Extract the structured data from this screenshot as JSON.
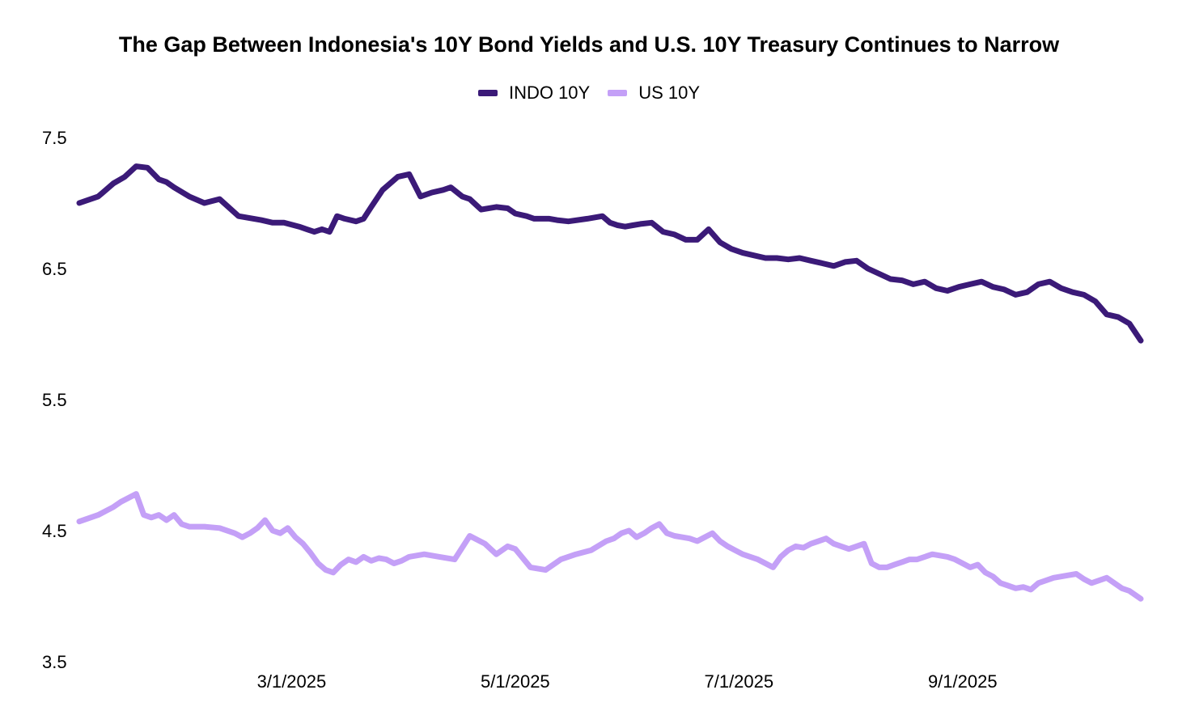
{
  "chart_data": {
    "type": "line",
    "title": "The Gap Between Indonesia's 10Y Bond Yields and U.S. 10Y Treasury Continues to Narrow",
    "xlabel": "",
    "ylabel": "",
    "ylim": [
      3.5,
      7.5
    ],
    "xlim": [
      0,
      280
    ],
    "grid": false,
    "legend_position": "top-center",
    "y_ticks": [
      {
        "value": 3.5,
        "label": "3.5"
      },
      {
        "value": 4.5,
        "label": "4.5"
      },
      {
        "value": 5.5,
        "label": "5.5"
      },
      {
        "value": 6.5,
        "label": "6.5"
      },
      {
        "value": 7.5,
        "label": "7.5"
      }
    ],
    "x_ticks": [
      {
        "value": 56,
        "label": "3/1/2025"
      },
      {
        "value": 115,
        "label": "5/1/2025"
      },
      {
        "value": 174,
        "label": "7/1/2025"
      },
      {
        "value": 233,
        "label": "9/1/2025"
      }
    ],
    "series": [
      {
        "name": "INDO 10Y",
        "color": "#3b1a78",
        "x": [
          0,
          5,
          9,
          12,
          15,
          18,
          21,
          23,
          25,
          29,
          33,
          37,
          42,
          48,
          51,
          54,
          58,
          60,
          62,
          64,
          66,
          68,
          70,
          73,
          75,
          77,
          80,
          84,
          87,
          90,
          93,
          96,
          98,
          101,
          103,
          106,
          110,
          113,
          115,
          118,
          120,
          124,
          126,
          129,
          134,
          138,
          140,
          142,
          144,
          146,
          148,
          151,
          154,
          157,
          160,
          163,
          166,
          169,
          172,
          175,
          178,
          181,
          184,
          187,
          190,
          193,
          196,
          199,
          202,
          205,
          208,
          211,
          214,
          217,
          220,
          223,
          226,
          229,
          232,
          235,
          238,
          241,
          244,
          247,
          250,
          253,
          256,
          259,
          262,
          265,
          268,
          271,
          274,
          277,
          280
        ],
        "values": [
          7.0,
          7.05,
          7.15,
          7.2,
          7.28,
          7.27,
          7.18,
          7.16,
          7.12,
          7.05,
          7.0,
          7.03,
          6.9,
          6.87,
          6.85,
          6.85,
          6.82,
          6.8,
          6.78,
          6.8,
          6.78,
          6.9,
          6.88,
          6.86,
          6.88,
          6.97,
          7.1,
          7.2,
          7.22,
          7.05,
          7.08,
          7.1,
          7.12,
          7.05,
          7.03,
          6.95,
          6.97,
          6.96,
          6.92,
          6.9,
          6.88,
          6.88,
          6.87,
          6.86,
          6.88,
          6.9,
          6.85,
          6.83,
          6.82,
          6.83,
          6.84,
          6.85,
          6.78,
          6.76,
          6.72,
          6.72,
          6.8,
          6.7,
          6.65,
          6.62,
          6.6,
          6.58,
          6.58,
          6.57,
          6.58,
          6.56,
          6.54,
          6.52,
          6.55,
          6.56,
          6.5,
          6.46,
          6.42,
          6.41,
          6.38,
          6.4,
          6.35,
          6.33,
          6.36,
          6.38,
          6.4,
          6.36,
          6.34,
          6.3,
          6.32,
          6.38,
          6.4,
          6.35,
          6.32,
          6.3,
          6.25,
          6.15,
          6.13,
          6.08,
          5.95
        ]
      },
      {
        "name": "US 10Y",
        "color": "#c4a0f7",
        "x": [
          0,
          3,
          5,
          7,
          9,
          11,
          13,
          15,
          17,
          19,
          21,
          23,
          25,
          27,
          29,
          33,
          37,
          41,
          43,
          45,
          47,
          49,
          51,
          53,
          55,
          57,
          59,
          61,
          63,
          65,
          67,
          69,
          71,
          73,
          75,
          77,
          79,
          81,
          83,
          85,
          87,
          91,
          95,
          99,
          103,
          107,
          110,
          113,
          115,
          119,
          123,
          127,
          131,
          135,
          139,
          141,
          143,
          145,
          147,
          149,
          151,
          153,
          155,
          157,
          159,
          161,
          163,
          165,
          167,
          169,
          171,
          173,
          175,
          177,
          179,
          181,
          183,
          185,
          187,
          189,
          191,
          193,
          195,
          197,
          199,
          201,
          203,
          205,
          207,
          209,
          211,
          213,
          215,
          217,
          219,
          221,
          223,
          225,
          227,
          229,
          231,
          233,
          235,
          237,
          239,
          241,
          243,
          245,
          247,
          249,
          251,
          253,
          255,
          257,
          259,
          261,
          263,
          265,
          267,
          269,
          271,
          273,
          275,
          277,
          280
        ],
        "values": [
          4.57,
          4.6,
          4.62,
          4.65,
          4.68,
          4.72,
          4.75,
          4.78,
          4.62,
          4.6,
          4.62,
          4.58,
          4.62,
          4.55,
          4.53,
          4.53,
          4.52,
          4.48,
          4.45,
          4.48,
          4.52,
          4.58,
          4.5,
          4.48,
          4.52,
          4.45,
          4.4,
          4.33,
          4.25,
          4.2,
          4.18,
          4.24,
          4.28,
          4.26,
          4.3,
          4.27,
          4.29,
          4.28,
          4.25,
          4.27,
          4.3,
          4.32,
          4.3,
          4.28,
          4.46,
          4.4,
          4.32,
          4.38,
          4.36,
          4.22,
          4.2,
          4.28,
          4.32,
          4.35,
          4.42,
          4.44,
          4.48,
          4.5,
          4.45,
          4.48,
          4.52,
          4.55,
          4.48,
          4.46,
          4.45,
          4.44,
          4.42,
          4.45,
          4.48,
          4.42,
          4.38,
          4.35,
          4.32,
          4.3,
          4.28,
          4.25,
          4.22,
          4.3,
          4.35,
          4.38,
          4.37,
          4.4,
          4.42,
          4.44,
          4.4,
          4.38,
          4.36,
          4.38,
          4.4,
          4.25,
          4.22,
          4.22,
          4.24,
          4.26,
          4.28,
          4.28,
          4.3,
          4.32,
          4.31,
          4.3,
          4.28,
          4.25,
          4.22,
          4.24,
          4.18,
          4.15,
          4.1,
          4.08,
          4.06,
          4.07,
          4.05,
          4.1,
          4.12,
          4.14,
          4.15,
          4.16,
          4.17,
          4.13,
          4.1,
          4.12,
          4.14,
          4.1,
          4.06,
          4.04,
          3.98
        ]
      }
    ]
  }
}
